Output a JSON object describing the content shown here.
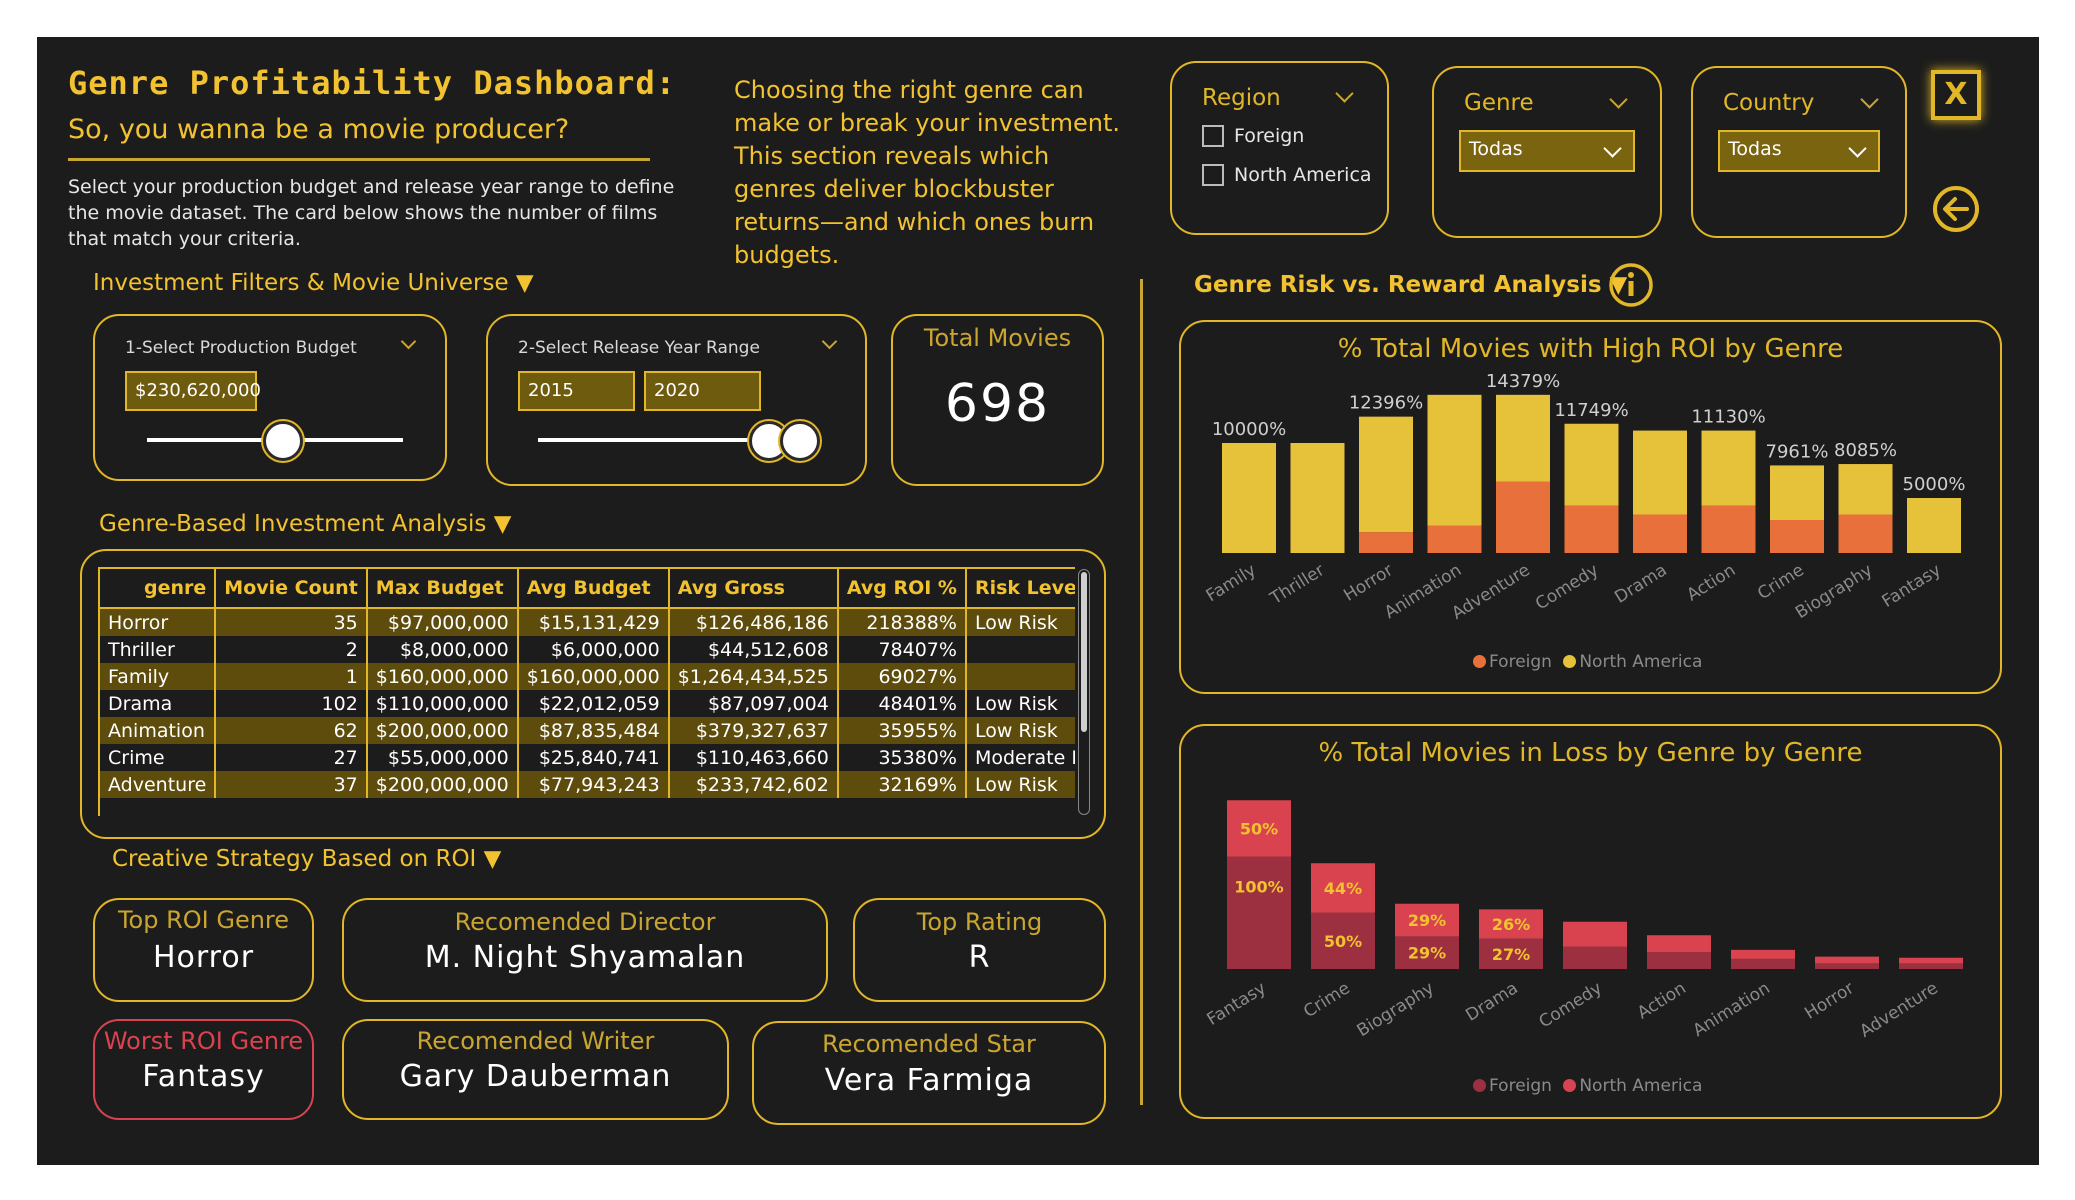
{
  "header": {
    "title": "Genre Profitability Dashboard:",
    "subtitle": "So, you wanna be a movie producer?",
    "intro": "Select your production budget and release year range to define the movie dataset. The card below shows the number of films that match your criteria.",
    "blurb": "Choosing the right genre can make or break your investment. This section reveals which genres deliver blockbuster returns—and which ones burn budgets."
  },
  "filters": {
    "region": {
      "label": "Region",
      "options": [
        "Foreign",
        "North America"
      ]
    },
    "genre": {
      "label": "Genre",
      "value": "Todas"
    },
    "country": {
      "label": "Country",
      "value": "Todas"
    },
    "close_label": "X"
  },
  "investment": {
    "section_title": "Investment Filters & Movie Universe ▼",
    "budget": {
      "label": "1-Select Production Budget",
      "value": "$230,620,000",
      "slider_fraction": 0.53
    },
    "years": {
      "label": "2-Select Release Year Range",
      "from": "2015",
      "to": "2020",
      "from_fraction": 0.88,
      "to_fraction": 1.0
    },
    "total": {
      "label": "Total Movies",
      "value": "698"
    }
  },
  "table": {
    "section_title": "Genre-Based Investment Analysis ▼",
    "columns": [
      "genre",
      "Movie Count",
      "Max Budget",
      "Avg Budget",
      "Avg Gross",
      "Avg ROI %",
      "Risk Level"
    ],
    "rows": [
      [
        "Horror",
        "35",
        "$97,000,000",
        "$15,131,429",
        "$126,486,186",
        "218388%",
        "Low Risk"
      ],
      [
        "Thriller",
        "2",
        "$8,000,000",
        "$6,000,000",
        "$44,512,608",
        "78407%",
        ""
      ],
      [
        "Family",
        "1",
        "$160,000,000",
        "$160,000,000",
        "$1,264,434,525",
        "69027%",
        ""
      ],
      [
        "Drama",
        "102",
        "$110,000,000",
        "$22,012,059",
        "$87,097,004",
        "48401%",
        "Low Risk"
      ],
      [
        "Animation",
        "62",
        "$200,000,000",
        "$87,835,484",
        "$379,327,637",
        "35955%",
        "Low Risk"
      ],
      [
        "Crime",
        "27",
        "$55,000,000",
        "$25,840,741",
        "$110,463,660",
        "35380%",
        "Moderate Risk"
      ],
      [
        "Adventure",
        "37",
        "$200,000,000",
        "$77,943,243",
        "$233,742,602",
        "32169%",
        "Low Risk"
      ]
    ]
  },
  "strategy": {
    "section_title": "Creative Strategy Based on ROI ▼",
    "top_genre": {
      "label": "Top ROI Genre",
      "value": "Horror"
    },
    "director": {
      "label": "Recomended Director",
      "value": "M. Night Shyamalan"
    },
    "rating": {
      "label": "Top Rating",
      "value": "R"
    },
    "worst_genre": {
      "label": "Worst ROI Genre",
      "value": "Fantasy"
    },
    "writer": {
      "label": "Recomended Writer",
      "value": "Gary Dauberman"
    },
    "star": {
      "label": "Recomended Star",
      "value": "Vera Farmiga"
    }
  },
  "risk_section_title": "Genre Risk vs. Reward Analysis ▼",
  "colors": {
    "accent": "#e1b727",
    "foreign_roi": "#e8703a",
    "na_roi": "#e6c23a",
    "foreign_loss": "#9c3040",
    "na_loss": "#d9434f"
  },
  "chart_data": [
    {
      "type": "bar",
      "stacked": true,
      "title": "% Total Movies with High ROI by Genre",
      "categories": [
        "Family",
        "Thriller",
        "Horror",
        "Animation",
        "Adventure",
        "Comedy",
        "Drama",
        "Action",
        "Crime",
        "Biography",
        "Fantasy"
      ],
      "series": [
        {
          "name": "Foreign",
          "values": [
            0,
            0,
            1900,
            2500,
            6500,
            4300,
            3500,
            4300,
            3000,
            3500,
            0
          ]
        },
        {
          "name": "North America",
          "values": [
            10000,
            10000,
            10496,
            11879,
            7879,
            7449,
            7630,
            6830,
            4961,
            4585,
            5000
          ]
        }
      ],
      "total_labels": [
        "10000%",
        "",
        "12396%",
        "",
        "14379%",
        "11749%",
        "",
        "11130%",
        "7961%",
        "8085%",
        "5000%"
      ],
      "ylim": [
        0,
        15000
      ],
      "legend": "bottom"
    },
    {
      "type": "bar",
      "stacked": true,
      "title": "% Total Movies in Loss by Genre by Genre",
      "categories": [
        "Fantasy",
        "Crime",
        "Biography",
        "Drama",
        "Comedy",
        "Action",
        "Animation",
        "Horror",
        "Adventure"
      ],
      "series": [
        {
          "name": "Foreign",
          "values": [
            100,
            50,
            29,
            27,
            20,
            15,
            9,
            5,
            5
          ]
        },
        {
          "name": "North America",
          "values": [
            50,
            44,
            29,
            26,
            22,
            15,
            8,
            6,
            5
          ]
        }
      ],
      "segment_labels_foreign": [
        "100%",
        "50%",
        "29%",
        "27%",
        "",
        "",
        "",
        "",
        ""
      ],
      "segment_labels_na": [
        "50%",
        "44%",
        "29%",
        "26%",
        "",
        "",
        "",
        "",
        ""
      ],
      "ylim": [
        0,
        160
      ],
      "legend": "bottom"
    }
  ],
  "legend": {
    "foreign": "Foreign",
    "na": "North America"
  }
}
